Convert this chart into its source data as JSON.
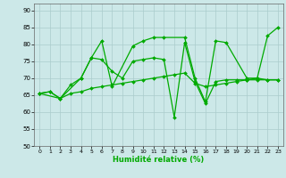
{
  "xlabel": "Humidité relative (%)",
  "xlim": [
    -0.5,
    23.5
  ],
  "ylim": [
    50,
    92
  ],
  "yticks": [
    50,
    55,
    60,
    65,
    70,
    75,
    80,
    85,
    90
  ],
  "xticks": [
    0,
    1,
    2,
    3,
    4,
    5,
    6,
    7,
    8,
    9,
    10,
    11,
    12,
    13,
    14,
    15,
    16,
    17,
    18,
    19,
    20,
    21,
    22,
    23
  ],
  "background_color": "#cce8e8",
  "grid_color": "#aacccc",
  "line_color": "#00aa00",
  "line1_x": [
    0,
    1,
    2,
    3,
    4,
    5,
    6,
    7,
    8,
    9,
    10,
    11,
    12,
    13,
    14,
    15,
    16,
    17,
    18,
    19,
    20,
    21,
    22,
    23
  ],
  "line1_y": [
    65.5,
    66.0,
    64.0,
    65.5,
    66.0,
    67.0,
    67.5,
    68.0,
    68.5,
    69.0,
    69.5,
    70.0,
    70.5,
    71.0,
    71.5,
    68.5,
    67.5,
    68.0,
    68.5,
    69.0,
    69.5,
    69.5,
    69.5,
    69.5
  ],
  "line2_x": [
    0,
    2,
    4,
    5,
    6,
    7,
    9,
    10,
    11,
    12,
    14,
    15,
    16,
    17,
    18,
    20,
    21,
    22,
    23
  ],
  "line2_y": [
    65.5,
    64.0,
    70.0,
    76.0,
    81.0,
    67.5,
    79.5,
    81.0,
    82.0,
    82.0,
    82.0,
    70.0,
    63.0,
    81.0,
    80.5,
    70.0,
    70.0,
    82.5,
    85.0
  ],
  "line3_x": [
    0,
    1,
    2,
    3,
    4,
    5,
    6,
    7,
    8,
    9,
    10,
    11,
    12,
    13,
    14,
    15,
    16,
    17,
    18,
    19,
    20,
    21,
    22,
    23
  ],
  "line3_y": [
    65.5,
    66.0,
    64.0,
    68.0,
    70.0,
    76.0,
    75.5,
    72.0,
    70.0,
    75.0,
    75.5,
    76.0,
    75.5,
    58.5,
    80.5,
    69.0,
    62.5,
    69.0,
    69.5,
    69.5,
    69.5,
    70.0,
    69.5,
    69.5
  ]
}
